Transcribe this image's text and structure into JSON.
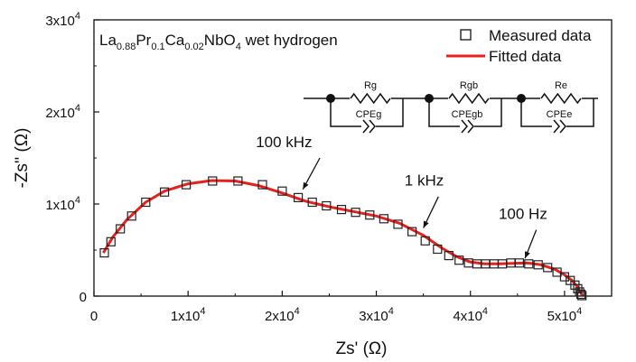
{
  "chart_data": {
    "type": "scatter",
    "title": "La0.88Pr0.1Ca0.02NbO4 wet hydrogen",
    "title_parts": {
      "el1": "La",
      "sub1": "0.88",
      "el2": "Pr",
      "sub2": "0.1",
      "el3": "Ca",
      "sub3": "0.02",
      "el4": "NbO",
      "sub4": "4",
      "rest": " wet hydrogen"
    },
    "xlabel": "Zs' (Ω)",
    "ylabel": "-Zs'' (Ω)",
    "xlim": [
      0,
      55000
    ],
    "ylim": [
      0,
      30000
    ],
    "x_ticks": [
      {
        "value": 0,
        "base": "0",
        "exp": ""
      },
      {
        "value": 10000,
        "base": "1x10",
        "exp": "4"
      },
      {
        "value": 20000,
        "base": "2x10",
        "exp": "4"
      },
      {
        "value": 30000,
        "base": "3x10",
        "exp": "4"
      },
      {
        "value": 40000,
        "base": "4x10",
        "exp": "4"
      },
      {
        "value": 50000,
        "base": "5x10",
        "exp": "4"
      }
    ],
    "y_ticks": [
      {
        "value": 0,
        "base": "0",
        "exp": ""
      },
      {
        "value": 10000,
        "base": "1x10",
        "exp": "4"
      },
      {
        "value": 20000,
        "base": "2x10",
        "exp": "4"
      },
      {
        "value": 30000,
        "base": "3x10",
        "exp": "4"
      }
    ],
    "grid": false,
    "legend_position": "top-right",
    "series": [
      {
        "name": "Measured data",
        "marker": "open-square",
        "color": "#222222",
        "x": [
          1100,
          1800,
          2800,
          4000,
          5500,
          7500,
          9800,
          12600,
          15300,
          17900,
          20000,
          21700,
          23200,
          24700,
          26300,
          27800,
          29300,
          30800,
          32300,
          33800,
          35200,
          36500,
          37700,
          38800,
          39800,
          40700,
          41600,
          42500,
          43400,
          44300,
          45200,
          46200,
          47200,
          48200,
          49200,
          50000,
          50600,
          51100,
          51400,
          51600,
          51750,
          51850
        ],
        "y": [
          4700,
          5900,
          7300,
          8700,
          10200,
          11300,
          12100,
          12500,
          12500,
          12100,
          11400,
          10700,
          10200,
          9800,
          9400,
          9100,
          8800,
          8400,
          7800,
          7000,
          6000,
          5100,
          4400,
          3900,
          3600,
          3500,
          3500,
          3500,
          3500,
          3600,
          3600,
          3500,
          3400,
          3100,
          2600,
          2100,
          1700,
          1200,
          800,
          450,
          200,
          50
        ]
      },
      {
        "name": "Fitted data",
        "marker": "line",
        "color": "#e8201b",
        "x": [
          1000,
          2000,
          3500,
          5500,
          7500,
          10000,
          12500,
          15000,
          17500,
          20000,
          22500,
          25000,
          27500,
          30000,
          32500,
          35000,
          37000,
          38500,
          40000,
          41500,
          43000,
          44500,
          46000,
          47500,
          49000,
          50000,
          50800,
          51300,
          51600,
          51800,
          51900
        ],
        "y": [
          4700,
          6400,
          8300,
          10200,
          11400,
          12200,
          12550,
          12500,
          12000,
          11200,
          10300,
          9700,
          9200,
          8700,
          7900,
          6600,
          5200,
          4300,
          3700,
          3500,
          3500,
          3550,
          3600,
          3400,
          2900,
          2300,
          1700,
          1100,
          600,
          200,
          30
        ]
      }
    ],
    "annotations": [
      {
        "text": "100 kHz",
        "text_at": [
          17200,
          16200
        ],
        "arrow_from": [
          24000,
          15000
        ],
        "arrow_to": [
          22200,
          11600
        ]
      },
      {
        "text": "1 kHz",
        "text_at": [
          33000,
          12000
        ],
        "arrow_from": [
          36600,
          10800
        ],
        "arrow_to": [
          35000,
          7400
        ]
      },
      {
        "text": "100 Hz",
        "text_at": [
          43000,
          8400
        ],
        "arrow_from": [
          47000,
          7200
        ],
        "arrow_to": [
          45800,
          4100
        ]
      }
    ],
    "equivalent_circuit": {
      "elements": [
        {
          "r": "Rg",
          "cpe": "CPEg"
        },
        {
          "r": "Rgb",
          "cpe": "CPEgb"
        },
        {
          "r": "Re",
          "cpe": "CPEe"
        }
      ]
    }
  }
}
